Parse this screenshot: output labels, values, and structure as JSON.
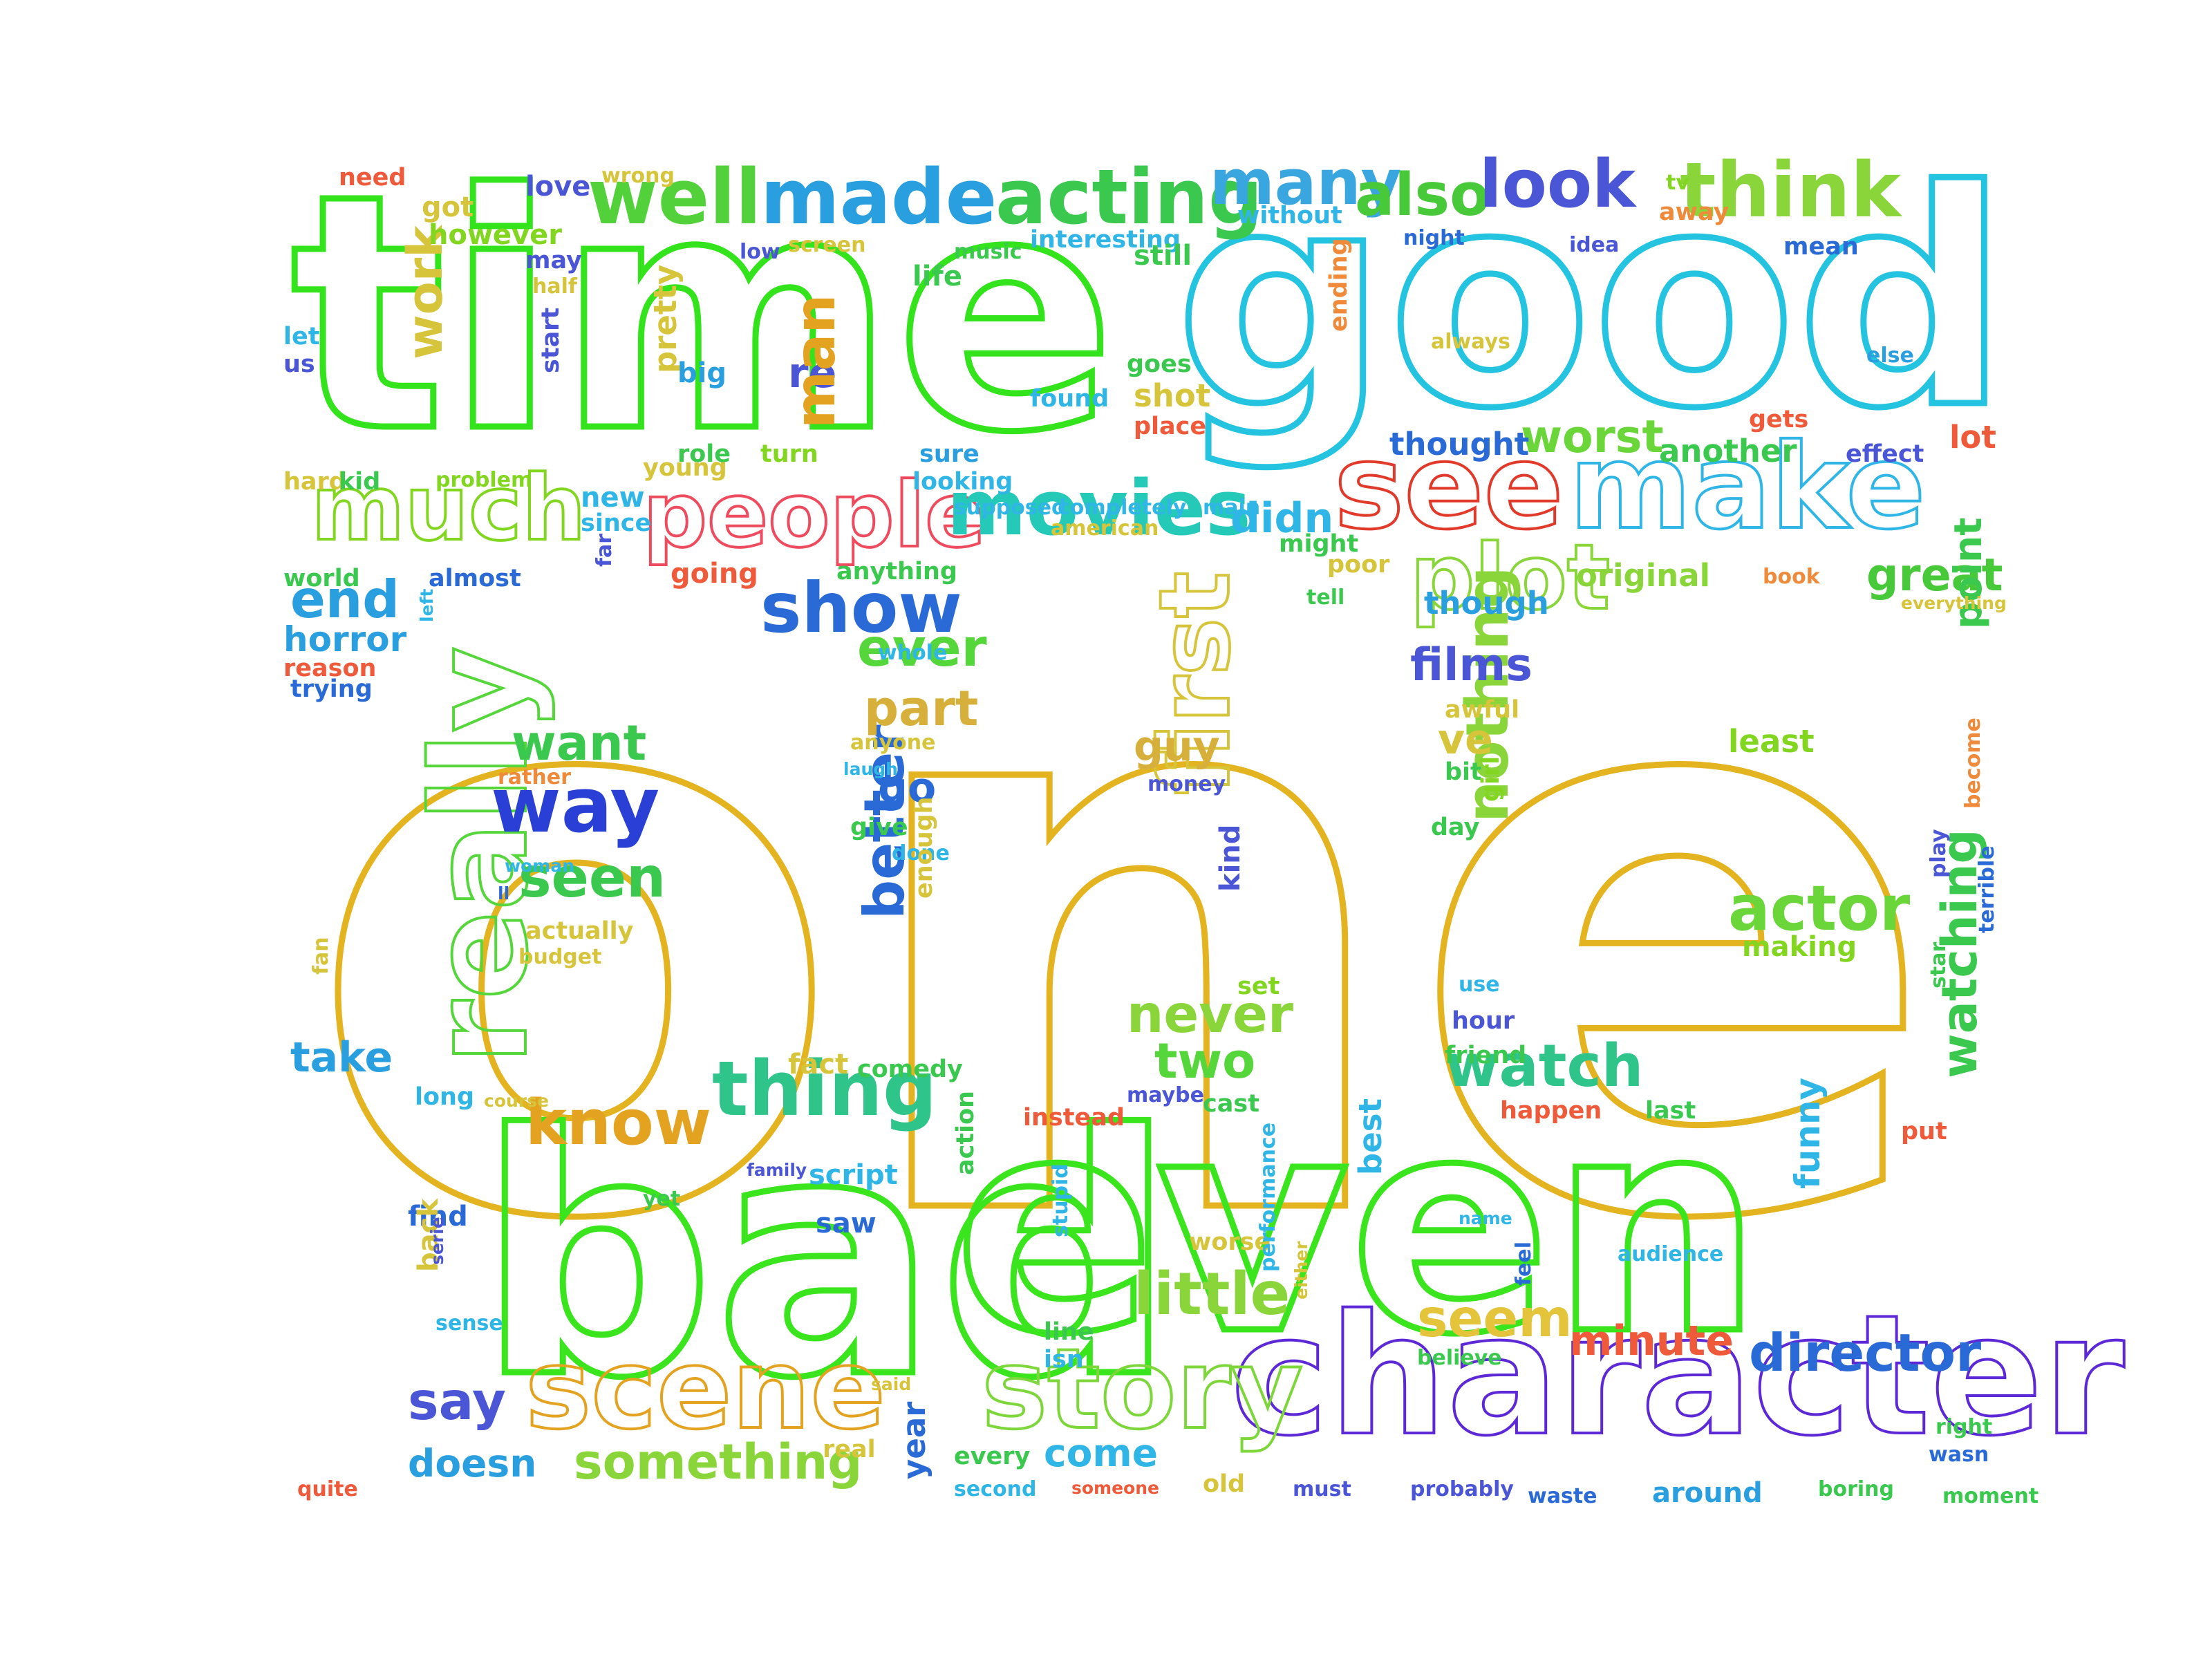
{
  "word_cloud": {
    "background": "#ffffff",
    "words": [
      {
        "text": "one",
        "color": "#e3b41f"
      },
      {
        "text": "time",
        "color": "#33e31c"
      },
      {
        "text": "good",
        "color": "#24c4e0"
      },
      {
        "text": "bad",
        "color": "#3be51e"
      },
      {
        "text": "even",
        "color": "#3be51e"
      },
      {
        "text": "character",
        "color": "#5d28d6"
      },
      {
        "text": "see",
        "color": "#e23a2a"
      },
      {
        "text": "make",
        "color": "#2fb6e6"
      },
      {
        "text": "people",
        "color": "#ef4b5f"
      },
      {
        "text": "movies",
        "color": "#24c9b8"
      },
      {
        "text": "much",
        "color": "#82d620"
      },
      {
        "text": "well",
        "color": "#52d13a"
      },
      {
        "text": "made",
        "color": "#2a9fe0"
      },
      {
        "text": "acting",
        "color": "#3ac94e"
      },
      {
        "text": "many",
        "color": "#3aa6e0"
      },
      {
        "text": "also",
        "color": "#47c93a"
      },
      {
        "text": "look",
        "color": "#4a56d6"
      },
      {
        "text": "think",
        "color": "#8ad63a"
      },
      {
        "text": "really",
        "color": "#55d63a"
      },
      {
        "text": "scene",
        "color": "#e3a21f"
      },
      {
        "text": "story",
        "color": "#7dd63a"
      },
      {
        "text": "plot",
        "color": "#8ad63a"
      },
      {
        "text": "show",
        "color": "#2a6ad6"
      },
      {
        "text": "way",
        "color": "#2a3fd6"
      },
      {
        "text": "thing",
        "color": "#2fc48a"
      },
      {
        "text": "know",
        "color": "#e3a21f"
      },
      {
        "text": "first",
        "color": "#d6c43a"
      },
      {
        "text": "watch",
        "color": "#2fc48a"
      },
      {
        "text": "actor",
        "color": "#6ad63a"
      },
      {
        "text": "nothing",
        "color": "#8ad63a"
      },
      {
        "text": "better",
        "color": "#2a6ad6"
      },
      {
        "text": "seem",
        "color": "#e3c43a"
      },
      {
        "text": "little",
        "color": "#8ad63a"
      },
      {
        "text": "director",
        "color": "#2a6ad6"
      },
      {
        "text": "something",
        "color": "#8ad63a"
      },
      {
        "text": "say",
        "color": "#4a56d6"
      },
      {
        "text": "doesn",
        "color": "#2a9fe0"
      },
      {
        "text": "come",
        "color": "#2fb6e6"
      },
      {
        "text": "minute",
        "color": "#ef5a3a"
      },
      {
        "text": "watching",
        "color": "#3ac94e"
      },
      {
        "text": "end",
        "color": "#2a9fe0"
      },
      {
        "text": "ever",
        "color": "#55d63a"
      },
      {
        "text": "part",
        "color": "#d6b03a"
      },
      {
        "text": "want",
        "color": "#3ac94e"
      },
      {
        "text": "seen",
        "color": "#3ac94e"
      },
      {
        "text": "never",
        "color": "#8ad63a"
      },
      {
        "text": "two",
        "color": "#55d63a"
      },
      {
        "text": "films",
        "color": "#4a56d6"
      },
      {
        "text": "great",
        "color": "#47c93a"
      },
      {
        "text": "worst",
        "color": "#6ad63a"
      },
      {
        "text": "didn",
        "color": "#2fb6e6"
      },
      {
        "text": "work",
        "color": "#d6c43a"
      },
      {
        "text": "re",
        "color": "#4a56d6"
      },
      {
        "text": "man",
        "color": "#e3a21f"
      },
      {
        "text": "take",
        "color": "#2a9fe0"
      },
      {
        "text": "go",
        "color": "#2a6ad6"
      },
      {
        "text": "guy",
        "color": "#d6b03a"
      },
      {
        "text": "ve",
        "color": "#d6c43a"
      },
      {
        "text": "original",
        "color": "#8ad63a"
      },
      {
        "text": "thought",
        "color": "#2a6ad6"
      },
      {
        "text": "another",
        "color": "#3ac94e"
      },
      {
        "text": "lot",
        "color": "#ef5a3a"
      },
      {
        "text": "funny",
        "color": "#2fb6e6"
      },
      {
        "text": "horror",
        "color": "#2a9fe0"
      },
      {
        "text": "point",
        "color": "#3ac94e"
      },
      {
        "text": "least",
        "color": "#82d620"
      },
      {
        "text": "making",
        "color": "#82d620"
      },
      {
        "text": "kind",
        "color": "#4a56d6"
      },
      {
        "text": "though",
        "color": "#2a9fe0"
      },
      {
        "text": "pretty",
        "color": "#d6c43a"
      },
      {
        "text": "shot",
        "color": "#d6c43a"
      },
      {
        "text": "got",
        "color": "#d6c43a"
      },
      {
        "text": "however",
        "color": "#82d620"
      },
      {
        "text": "love",
        "color": "#4a56d6"
      },
      {
        "text": "need",
        "color": "#ef5a3a"
      },
      {
        "text": "wrong",
        "color": "#d6c43a"
      },
      {
        "text": "may",
        "color": "#4a56d6"
      },
      {
        "text": "half",
        "color": "#d6c43a"
      },
      {
        "text": "let",
        "color": "#2fb6e6"
      },
      {
        "text": "us",
        "color": "#4a56d6"
      },
      {
        "text": "low",
        "color": "#4a56d6"
      },
      {
        "text": "screen",
        "color": "#d6c43a"
      },
      {
        "text": "music",
        "color": "#3ac94e"
      },
      {
        "text": "interesting",
        "color": "#2fb6e6"
      },
      {
        "text": "life",
        "color": "#3ac94e"
      },
      {
        "text": "without",
        "color": "#2fb6e6"
      },
      {
        "text": "still",
        "color": "#3ac94e"
      },
      {
        "text": "night",
        "color": "#2a6ad6"
      },
      {
        "text": "idea",
        "color": "#4a56d6"
      },
      {
        "text": "tv",
        "color": "#82d620"
      },
      {
        "text": "away",
        "color": "#ef8a3a"
      },
      {
        "text": "mean",
        "color": "#2a6ad6"
      },
      {
        "text": "big",
        "color": "#2a9fe0"
      },
      {
        "text": "start",
        "color": "#4a56d6"
      },
      {
        "text": "goes",
        "color": "#3ac94e"
      },
      {
        "text": "found",
        "color": "#2fb6e6"
      },
      {
        "text": "place",
        "color": "#ef5a3a"
      },
      {
        "text": "ending",
        "color": "#ef8a3a"
      },
      {
        "text": "always",
        "color": "#d6c43a"
      },
      {
        "text": "else",
        "color": "#2a9fe0"
      },
      {
        "text": "gets",
        "color": "#ef5a3a"
      },
      {
        "text": "effect",
        "color": "#4a56d6"
      },
      {
        "text": "role",
        "color": "#3ac94e"
      },
      {
        "text": "young",
        "color": "#d6c43a"
      },
      {
        "text": "sure",
        "color": "#2a9fe0"
      },
      {
        "text": "looking",
        "color": "#2fb6e6"
      },
      {
        "text": "turn",
        "color": "#82d620"
      },
      {
        "text": "hard",
        "color": "#d6c43a"
      },
      {
        "text": "kid",
        "color": "#3ac94e"
      },
      {
        "text": "problem",
        "color": "#82d620"
      },
      {
        "text": "new",
        "color": "#2fb6e6"
      },
      {
        "text": "since",
        "color": "#2fb6e6"
      },
      {
        "text": "far",
        "color": "#4a56d6"
      },
      {
        "text": "american",
        "color": "#d6c43a"
      },
      {
        "text": "supposed",
        "color": "#2fb6e6"
      },
      {
        "text": "completely",
        "color": "#2fb6e6"
      },
      {
        "text": "main",
        "color": "#2fb6e6"
      },
      {
        "text": "might",
        "color": "#3ac94e"
      },
      {
        "text": "going",
        "color": "#ef5a3a"
      },
      {
        "text": "anything",
        "color": "#3ac94e"
      },
      {
        "text": "poor",
        "color": "#d6c43a"
      },
      {
        "text": "tell",
        "color": "#3ac94e"
      },
      {
        "text": "book",
        "color": "#ef8a3a"
      },
      {
        "text": "everything",
        "color": "#d6c43a"
      },
      {
        "text": "world",
        "color": "#3ac94e"
      },
      {
        "text": "almost",
        "color": "#2a6ad6"
      },
      {
        "text": "left",
        "color": "#2fb6e6"
      },
      {
        "text": "reason",
        "color": "#ef5a3a"
      },
      {
        "text": "trying",
        "color": "#2a6ad6"
      },
      {
        "text": "whole",
        "color": "#2fb6e6"
      },
      {
        "text": "anyone",
        "color": "#d6c43a"
      },
      {
        "text": "laugh",
        "color": "#2fb6e6"
      },
      {
        "text": "awful",
        "color": "#d6c43a"
      },
      {
        "text": "bit",
        "color": "#3ac94e"
      },
      {
        "text": "girl",
        "color": "#82d620"
      },
      {
        "text": "day",
        "color": "#3ac94e"
      },
      {
        "text": "rather",
        "color": "#ef8a3a"
      },
      {
        "text": "money",
        "color": "#4a56d6"
      },
      {
        "text": "give",
        "color": "#3ac94e"
      },
      {
        "text": "done",
        "color": "#2fb6e6"
      },
      {
        "text": "woman",
        "color": "#2fb6e6"
      },
      {
        "text": "ll",
        "color": "#2a6ad6"
      },
      {
        "text": "actually",
        "color": "#d6c43a"
      },
      {
        "text": "budget",
        "color": "#d6c43a"
      },
      {
        "text": "enough",
        "color": "#d6c43a"
      },
      {
        "text": "become",
        "color": "#ef8a3a"
      },
      {
        "text": "play",
        "color": "#4a56d6"
      },
      {
        "text": "terrible",
        "color": "#2a6ad6"
      },
      {
        "text": "star",
        "color": "#3ac94e"
      },
      {
        "text": "fan",
        "color": "#d6c43a"
      },
      {
        "text": "use",
        "color": "#2fb6e6"
      },
      {
        "text": "set",
        "color": "#82d620"
      },
      {
        "text": "hour",
        "color": "#4a56d6"
      },
      {
        "text": "friend",
        "color": "#3ac94e"
      },
      {
        "text": "fact",
        "color": "#d6c43a"
      },
      {
        "text": "comedy",
        "color": "#3ac94e"
      },
      {
        "text": "maybe",
        "color": "#4a56d6"
      },
      {
        "text": "cast",
        "color": "#3ac94e"
      },
      {
        "text": "happen",
        "color": "#ef5a3a"
      },
      {
        "text": "put",
        "color": "#ef5a3a"
      },
      {
        "text": "instead",
        "color": "#ef5a3a"
      },
      {
        "text": "best",
        "color": "#2fb6e6"
      },
      {
        "text": "last",
        "color": "#3ac94e"
      },
      {
        "text": "long",
        "color": "#2fb6e6"
      },
      {
        "text": "course",
        "color": "#d6c43a"
      },
      {
        "text": "family",
        "color": "#4a56d6"
      },
      {
        "text": "script",
        "color": "#2fb6e6"
      },
      {
        "text": "action",
        "color": "#3ac94e"
      },
      {
        "text": "find",
        "color": "#2a6ad6"
      },
      {
        "text": "yet",
        "color": "#3ac94e"
      },
      {
        "text": "saw",
        "color": "#2a6ad6"
      },
      {
        "text": "stupid",
        "color": "#2fb6e6"
      },
      {
        "text": "worse",
        "color": "#d6c43a"
      },
      {
        "text": "performance",
        "color": "#2fb6e6"
      },
      {
        "text": "name",
        "color": "#2fb6e6"
      },
      {
        "text": "audience",
        "color": "#2fb6e6"
      },
      {
        "text": "either",
        "color": "#d6c43a"
      },
      {
        "text": "feel",
        "color": "#2a6ad6"
      },
      {
        "text": "back",
        "color": "#d6c43a"
      },
      {
        "text": "serie",
        "color": "#4a56d6"
      },
      {
        "text": "sense",
        "color": "#2fb6e6"
      },
      {
        "text": "line",
        "color": "#3ac94e"
      },
      {
        "text": "isn",
        "color": "#2fb6e6"
      },
      {
        "text": "believe",
        "color": "#3ac94e"
      },
      {
        "text": "said",
        "color": "#d6c43a"
      },
      {
        "text": "year",
        "color": "#2a6ad6"
      },
      {
        "text": "every",
        "color": "#3ac94e"
      },
      {
        "text": "old",
        "color": "#d6c43a"
      },
      {
        "text": "must",
        "color": "#4a56d6"
      },
      {
        "text": "probably",
        "color": "#4a56d6"
      },
      {
        "text": "around",
        "color": "#2a9fe0"
      },
      {
        "text": "boring",
        "color": "#3ac94e"
      },
      {
        "text": "right",
        "color": "#3ac94e"
      },
      {
        "text": "wasn",
        "color": "#2a6ad6"
      },
      {
        "text": "moment",
        "color": "#3ac94e"
      },
      {
        "text": "quite",
        "color": "#ef5a3a"
      },
      {
        "text": "real",
        "color": "#d6c43a"
      },
      {
        "text": "second",
        "color": "#2fb6e6"
      },
      {
        "text": "someone",
        "color": "#ef5a3a"
      },
      {
        "text": "waste",
        "color": "#2a6ad6"
      }
    ]
  }
}
